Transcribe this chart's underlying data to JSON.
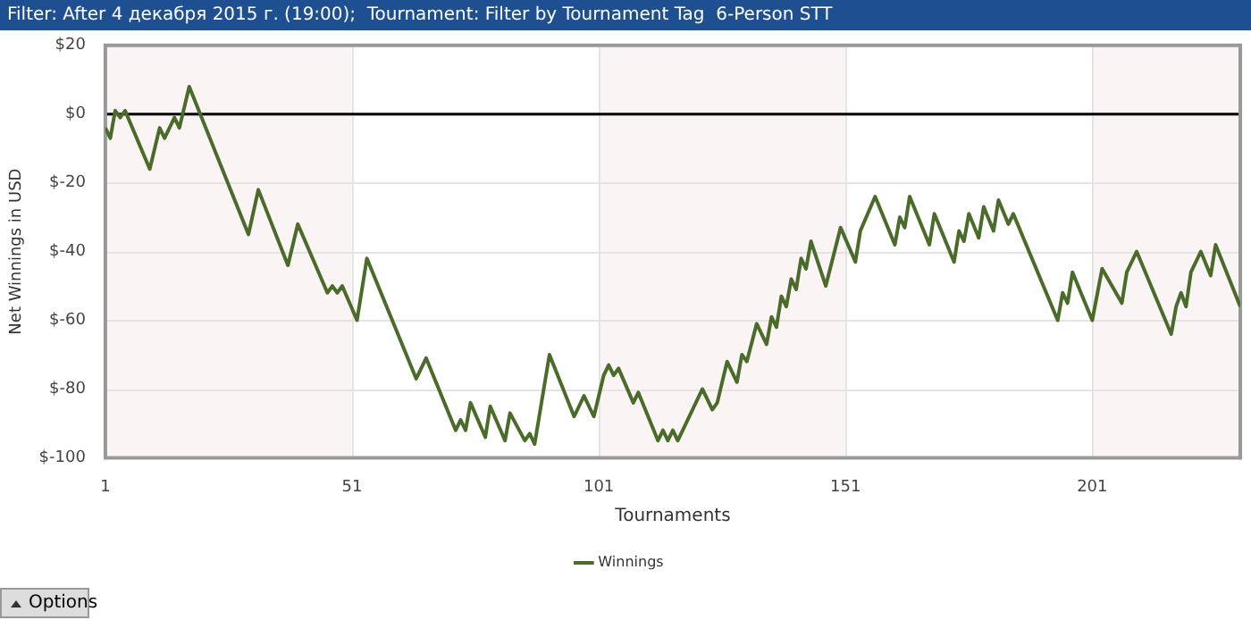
{
  "chart_data": {
    "type": "line",
    "title": "Filter: After 4 декабря 2015 г. (19:00);  Tournament: Filter by Tournament Tag  6-Person STT",
    "xlabel": "Tournaments",
    "ylabel": "Net Winnings in USD",
    "series": [
      {
        "name": "Winnings",
        "color": "#4b6b2b",
        "x": [
          1,
          2,
          3,
          4,
          5,
          10,
          12,
          13,
          15,
          16,
          18,
          30,
          32,
          38,
          40,
          46,
          47,
          48,
          49,
          52,
          54,
          64,
          66,
          72,
          73,
          74,
          75,
          78,
          79,
          82,
          83,
          86,
          87,
          88,
          91,
          96,
          98,
          100,
          102,
          103,
          104,
          105,
          108,
          109,
          113,
          114,
          115,
          116,
          117,
          122,
          124,
          125,
          127,
          129,
          130,
          131,
          133,
          135,
          136,
          137,
          138,
          139,
          140,
          141,
          142,
          143,
          144,
          147,
          150,
          153,
          154,
          157,
          161,
          162,
          163,
          164,
          168,
          169,
          173,
          174,
          175,
          176,
          178,
          179,
          181,
          182,
          184,
          185,
          194,
          195,
          196,
          197,
          201,
          203,
          207,
          208,
          210,
          217,
          218,
          219,
          220,
          221,
          223,
          225,
          226,
          231
        ],
        "values": [
          -4,
          -7,
          1,
          -1,
          1,
          -16,
          -4,
          -7,
          -1,
          -4,
          8,
          -35,
          -22,
          -44,
          -32,
          -52,
          -50,
          -52,
          -50,
          -60,
          -42,
          -77,
          -71,
          -92,
          -89,
          -92,
          -84,
          -94,
          -85,
          -95,
          -87,
          -95,
          -93,
          -96,
          -70,
          -88,
          -82,
          -88,
          -76,
          -73,
          -76,
          -74,
          -84,
          -81,
          -95,
          -92,
          -95,
          -92,
          -95,
          -80,
          -86,
          -84,
          -72,
          -78,
          -70,
          -72,
          -61,
          -67,
          -59,
          -62,
          -53,
          -56,
          -48,
          -51,
          -42,
          -45,
          -37,
          -50,
          -33,
          -43,
          -34,
          -24,
          -38,
          -30,
          -33,
          -24,
          -38,
          -29,
          -43,
          -34,
          -37,
          -29,
          -36,
          -27,
          -34,
          -25,
          -32,
          -29,
          -60,
          -52,
          -55,
          -46,
          -60,
          -45,
          -55,
          -46,
          -40,
          -64,
          -56,
          -52,
          -56,
          -46,
          -40,
          -47,
          -38,
          -56
        ]
      }
    ],
    "xlim": [
      1,
      231
    ],
    "xticks": [
      1,
      51,
      101,
      151,
      201
    ],
    "ylim": [
      -100,
      20
    ],
    "yticks": [
      {
        "value": 20,
        "label": "$20"
      },
      {
        "value": 0,
        "label": "$0"
      },
      {
        "value": -20,
        "label": "$-20"
      },
      {
        "value": -40,
        "label": "$-40"
      },
      {
        "value": -60,
        "label": "$-60"
      },
      {
        "value": -80,
        "label": "$-80"
      },
      {
        "value": -100,
        "label": "$-100"
      }
    ],
    "ref_lines": [
      {
        "axis": "y",
        "value": 0,
        "color": "#000000"
      }
    ],
    "bands": [
      {
        "axis": "x",
        "from": 1,
        "to": 51,
        "color": "#fbf4f4"
      },
      {
        "axis": "x",
        "from": 101,
        "to": 151,
        "color": "#fbf4f4"
      },
      {
        "axis": "x",
        "from": 201,
        "to": 231,
        "color": "#fbf4f4"
      }
    ],
    "annotations": [
      "Options"
    ],
    "grid": true,
    "legend": "bottom",
    "marker": "none",
    "line_style": "solid"
  }
}
